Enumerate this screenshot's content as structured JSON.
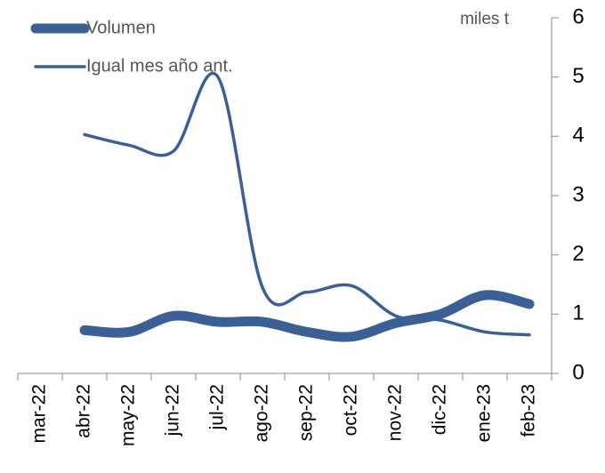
{
  "chart_data": {
    "type": "line",
    "y_label": "miles t",
    "categories": [
      "mar-22",
      "abr-22",
      "may-22",
      "jun-22",
      "jul-22",
      "ago-22",
      "sep-22",
      "oct-22",
      "nov-22",
      "dic-22",
      "ene-23",
      "feb-23"
    ],
    "series": [
      {
        "name": "Volumen",
        "color": "#3b6096",
        "values": [
          null,
          0.73,
          0.7,
          0.97,
          0.87,
          0.87,
          0.7,
          0.62,
          0.85,
          1.0,
          1.32,
          1.17
        ]
      },
      {
        "name": "Igual mes año ant.",
        "color": "#3b6096",
        "values": [
          null,
          4.03,
          3.85,
          3.75,
          5.0,
          1.45,
          1.37,
          1.48,
          0.97,
          0.9,
          0.7,
          0.65
        ]
      }
    ],
    "ylim": [
      0,
      6
    ],
    "yticks": [
      0,
      1,
      2,
      3,
      4,
      5,
      6
    ],
    "y_axis_side": "right",
    "legend": "upper left"
  }
}
